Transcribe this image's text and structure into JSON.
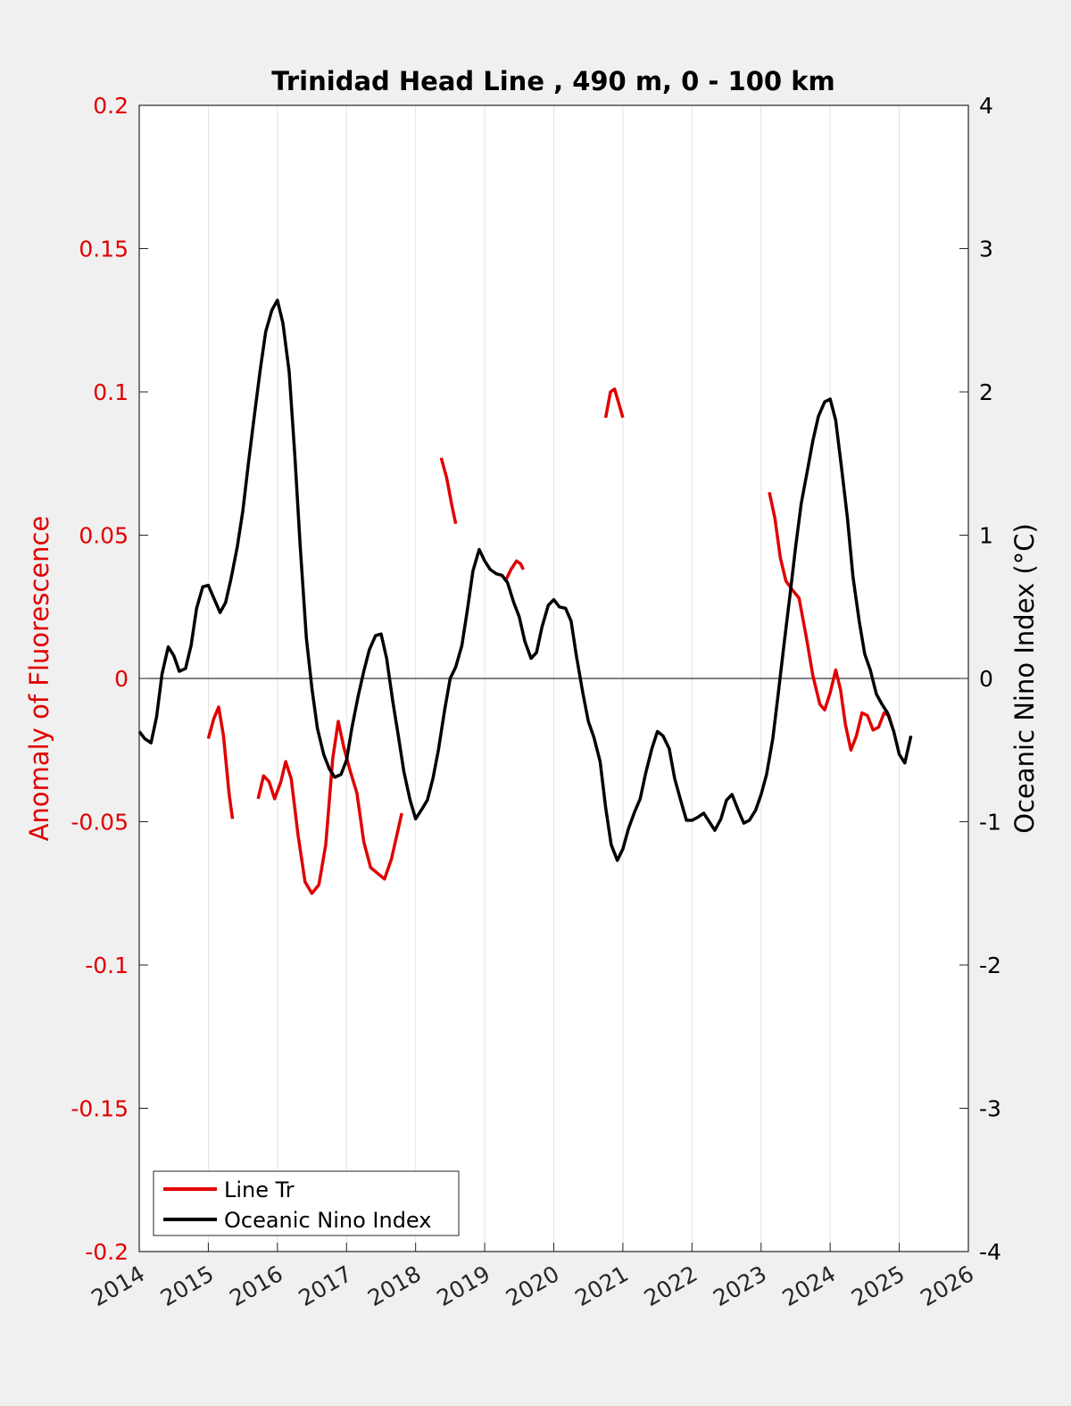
{
  "chart_data": {
    "type": "line",
    "title": "Trinidad Head Line , 490 m, 0 - 100 km",
    "xlim": [
      2014,
      2026
    ],
    "x_ticks": [
      "2014",
      "2015",
      "2016",
      "2017",
      "2018",
      "2019",
      "2020",
      "2021",
      "2022",
      "2023",
      "2024",
      "2025",
      "2026"
    ],
    "ylabel_left": "Anomaly of Fluorescence",
    "ylim_left": [
      -0.2,
      0.2
    ],
    "y_ticks_left": [
      "0.2",
      "0.15",
      "0.1",
      "0.05",
      "0",
      "-0.05",
      "-0.1",
      "-0.15",
      "-0.2"
    ],
    "ylabel_right": "Oceanic Nino Index (°C)",
    "ylim_right": [
      -4,
      4
    ],
    "y_ticks_right": [
      "4",
      "3",
      "2",
      "1",
      "0",
      "-1",
      "-2",
      "-3",
      "-4"
    ],
    "grid": "vertical",
    "zero_line": true,
    "legend_position": "bottom-left",
    "series": [
      {
        "name": "Line Tr",
        "axis": "left",
        "color": "#e00000",
        "segments": [
          [
            [
              2015.0,
              -0.021
            ],
            [
              2015.08,
              -0.014
            ],
            [
              2015.15,
              -0.01
            ],
            [
              2015.22,
              -0.02
            ],
            [
              2015.3,
              -0.04
            ],
            [
              2015.35,
              -0.049
            ]
          ],
          [
            [
              2015.72,
              -0.042
            ],
            [
              2015.8,
              -0.034
            ],
            [
              2015.88,
              -0.036
            ],
            [
              2015.96,
              -0.042
            ],
            [
              2016.05,
              -0.036
            ],
            [
              2016.12,
              -0.029
            ],
            [
              2016.2,
              -0.035
            ],
            [
              2016.3,
              -0.055
            ],
            [
              2016.4,
              -0.071
            ],
            [
              2016.5,
              -0.075
            ],
            [
              2016.6,
              -0.072
            ],
            [
              2016.7,
              -0.058
            ],
            [
              2016.8,
              -0.028
            ],
            [
              2016.88,
              -0.015
            ],
            [
              2016.96,
              -0.024
            ],
            [
              2017.05,
              -0.032
            ],
            [
              2017.15,
              -0.04
            ],
            [
              2017.25,
              -0.057
            ],
            [
              2017.35,
              -0.066
            ],
            [
              2017.45,
              -0.068
            ],
            [
              2017.55,
              -0.07
            ],
            [
              2017.65,
              -0.063
            ],
            [
              2017.8,
              -0.047
            ]
          ],
          [
            [
              2018.37,
              0.077
            ],
            [
              2018.45,
              0.07
            ],
            [
              2018.52,
              0.061
            ],
            [
              2018.58,
              0.054
            ]
          ],
          [
            [
              2019.3,
              0.034
            ],
            [
              2019.38,
              0.038
            ],
            [
              2019.46,
              0.041
            ],
            [
              2019.52,
              0.04
            ],
            [
              2019.56,
              0.038
            ]
          ],
          [
            [
              2020.75,
              0.091
            ],
            [
              2020.82,
              0.1
            ],
            [
              2020.88,
              0.101
            ],
            [
              2020.94,
              0.096
            ],
            [
              2021.0,
              0.091
            ]
          ],
          [
            [
              2023.12,
              0.065
            ],
            [
              2023.2,
              0.056
            ],
            [
              2023.28,
              0.042
            ],
            [
              2023.36,
              0.034
            ],
            [
              2023.45,
              0.031
            ],
            [
              2023.55,
              0.028
            ],
            [
              2023.65,
              0.015
            ],
            [
              2023.75,
              0.001
            ],
            [
              2023.85,
              -0.009
            ],
            [
              2023.92,
              -0.011
            ],
            [
              2024.0,
              -0.005
            ],
            [
              2024.08,
              0.003
            ],
            [
              2024.15,
              -0.004
            ],
            [
              2024.22,
              -0.016
            ],
            [
              2024.3,
              -0.025
            ],
            [
              2024.38,
              -0.02
            ],
            [
              2024.46,
              -0.012
            ],
            [
              2024.54,
              -0.013
            ],
            [
              2024.62,
              -0.018
            ],
            [
              2024.7,
              -0.017
            ],
            [
              2024.78,
              -0.012
            ],
            [
              2024.85,
              -0.013
            ],
            [
              2024.9,
              -0.017
            ]
          ]
        ]
      },
      {
        "name": "Oceanic Nino Index",
        "axis": "right",
        "color": "#000000",
        "segments": [
          [
            [
              2014.0,
              -0.37
            ],
            [
              2014.08,
              -0.42
            ],
            [
              2014.17,
              -0.45
            ],
            [
              2014.25,
              -0.27
            ],
            [
              2014.33,
              0.03
            ],
            [
              2014.42,
              0.22
            ],
            [
              2014.5,
              0.16
            ],
            [
              2014.58,
              0.05
            ],
            [
              2014.67,
              0.07
            ],
            [
              2014.75,
              0.23
            ],
            [
              2014.83,
              0.49
            ],
            [
              2014.92,
              0.64
            ],
            [
              2015.0,
              0.65
            ],
            [
              2015.08,
              0.56
            ],
            [
              2015.17,
              0.46
            ],
            [
              2015.25,
              0.53
            ],
            [
              2015.33,
              0.7
            ],
            [
              2015.42,
              0.92
            ],
            [
              2015.5,
              1.17
            ],
            [
              2015.58,
              1.5
            ],
            [
              2015.67,
              1.85
            ],
            [
              2015.75,
              2.15
            ],
            [
              2015.83,
              2.42
            ],
            [
              2015.92,
              2.57
            ],
            [
              2016.0,
              2.64
            ],
            [
              2016.08,
              2.48
            ],
            [
              2016.17,
              2.14
            ],
            [
              2016.25,
              1.57
            ],
            [
              2016.33,
              0.92
            ],
            [
              2016.42,
              0.28
            ],
            [
              2016.5,
              -0.07
            ],
            [
              2016.58,
              -0.35
            ],
            [
              2016.67,
              -0.53
            ],
            [
              2016.75,
              -0.63
            ],
            [
              2016.83,
              -0.69
            ],
            [
              2016.92,
              -0.67
            ],
            [
              2017.0,
              -0.57
            ],
            [
              2017.08,
              -0.34
            ],
            [
              2017.17,
              -0.12
            ],
            [
              2017.25,
              0.05
            ],
            [
              2017.33,
              0.2
            ],
            [
              2017.42,
              0.3
            ],
            [
              2017.5,
              0.31
            ],
            [
              2017.58,
              0.14
            ],
            [
              2017.67,
              -0.16
            ],
            [
              2017.75,
              -0.4
            ],
            [
              2017.83,
              -0.65
            ],
            [
              2017.92,
              -0.85
            ],
            [
              2018.0,
              -0.98
            ],
            [
              2018.08,
              -0.92
            ],
            [
              2018.17,
              -0.85
            ],
            [
              2018.25,
              -0.7
            ],
            [
              2018.33,
              -0.5
            ],
            [
              2018.42,
              -0.22
            ],
            [
              2018.5,
              0.0
            ],
            [
              2018.58,
              0.08
            ],
            [
              2018.67,
              0.23
            ],
            [
              2018.75,
              0.48
            ],
            [
              2018.83,
              0.75
            ],
            [
              2018.92,
              0.9
            ],
            [
              2019.0,
              0.82
            ],
            [
              2019.08,
              0.76
            ],
            [
              2019.17,
              0.73
            ],
            [
              2019.25,
              0.72
            ],
            [
              2019.33,
              0.67
            ],
            [
              2019.42,
              0.53
            ],
            [
              2019.5,
              0.43
            ],
            [
              2019.58,
              0.26
            ],
            [
              2019.67,
              0.14
            ],
            [
              2019.75,
              0.18
            ],
            [
              2019.83,
              0.36
            ],
            [
              2019.92,
              0.51
            ],
            [
              2020.0,
              0.55
            ],
            [
              2020.08,
              0.5
            ],
            [
              2020.17,
              0.49
            ],
            [
              2020.25,
              0.4
            ],
            [
              2020.33,
              0.15
            ],
            [
              2020.42,
              -0.1
            ],
            [
              2020.5,
              -0.3
            ],
            [
              2020.58,
              -0.41
            ],
            [
              2020.67,
              -0.58
            ],
            [
              2020.75,
              -0.9
            ],
            [
              2020.83,
              -1.16
            ],
            [
              2020.92,
              -1.27
            ],
            [
              2021.0,
              -1.19
            ],
            [
              2021.08,
              -1.05
            ],
            [
              2021.17,
              -0.93
            ],
            [
              2021.25,
              -0.84
            ],
            [
              2021.33,
              -0.66
            ],
            [
              2021.42,
              -0.49
            ],
            [
              2021.5,
              -0.37
            ],
            [
              2021.58,
              -0.4
            ],
            [
              2021.67,
              -0.49
            ],
            [
              2021.75,
              -0.7
            ],
            [
              2021.83,
              -0.84
            ],
            [
              2021.92,
              -0.99
            ],
            [
              2022.0,
              -0.99
            ],
            [
              2022.08,
              -0.97
            ],
            [
              2022.17,
              -0.94
            ],
            [
              2022.25,
              -1.0
            ],
            [
              2022.33,
              -1.06
            ],
            [
              2022.42,
              -0.98
            ],
            [
              2022.5,
              -0.85
            ],
            [
              2022.58,
              -0.81
            ],
            [
              2022.67,
              -0.92
            ],
            [
              2022.75,
              -1.01
            ],
            [
              2022.83,
              -0.99
            ],
            [
              2022.92,
              -0.92
            ],
            [
              2023.0,
              -0.81
            ],
            [
              2023.08,
              -0.67
            ],
            [
              2023.17,
              -0.42
            ],
            [
              2023.25,
              -0.1
            ],
            [
              2023.33,
              0.23
            ],
            [
              2023.42,
              0.59
            ],
            [
              2023.5,
              0.92
            ],
            [
              2023.58,
              1.22
            ],
            [
              2023.67,
              1.45
            ],
            [
              2023.75,
              1.66
            ],
            [
              2023.83,
              1.83
            ],
            [
              2023.92,
              1.93
            ],
            [
              2024.0,
              1.95
            ],
            [
              2024.08,
              1.8
            ],
            [
              2024.17,
              1.45
            ],
            [
              2024.25,
              1.12
            ],
            [
              2024.33,
              0.71
            ],
            [
              2024.42,
              0.4
            ],
            [
              2024.5,
              0.17
            ],
            [
              2024.58,
              0.06
            ],
            [
              2024.67,
              -0.11
            ],
            [
              2024.75,
              -0.18
            ],
            [
              2024.83,
              -0.24
            ],
            [
              2024.92,
              -0.37
            ],
            [
              2025.0,
              -0.53
            ],
            [
              2025.08,
              -0.59
            ],
            [
              2025.17,
              -0.4
            ]
          ]
        ]
      }
    ]
  }
}
